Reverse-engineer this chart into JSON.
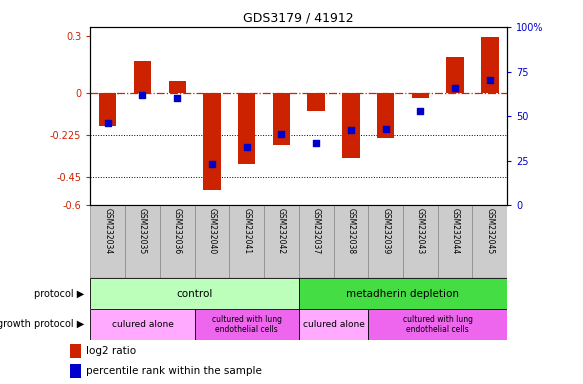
{
  "title": "GDS3179 / 41912",
  "samples": [
    "GSM232034",
    "GSM232035",
    "GSM232036",
    "GSM232040",
    "GSM232041",
    "GSM232042",
    "GSM232037",
    "GSM232038",
    "GSM232039",
    "GSM232043",
    "GSM232044",
    "GSM232045"
  ],
  "log2_ratio": [
    -0.18,
    0.17,
    0.06,
    -0.52,
    -0.38,
    -0.28,
    -0.095,
    -0.35,
    -0.24,
    -0.03,
    0.19,
    0.295
  ],
  "percentile": [
    46,
    62,
    60,
    23,
    33,
    40,
    35,
    42,
    43,
    53,
    66,
    70
  ],
  "ylim_left": [
    -0.6,
    0.35
  ],
  "ylim_right": [
    0,
    100
  ],
  "yticks_left": [
    -0.6,
    -0.45,
    -0.225,
    0,
    0.3
  ],
  "yticks_right": [
    0,
    25,
    50,
    75,
    100
  ],
  "hlines": [
    -0.225,
    -0.45
  ],
  "bar_color": "#cc2200",
  "dot_color": "#0000cc",
  "dash_color": "#cc2200",
  "protocol_control_color": "#bbffbb",
  "protocol_depletion_color": "#44dd44",
  "growth_alone_color": "#ffaaff",
  "growth_lung_color": "#ee66ee",
  "protocol_control_label": "control",
  "protocol_depletion_label": "metadherin depletion",
  "growth_alone_label": "culured alone",
  "growth_lung_label": "cultured with lung\nendothelial cells",
  "protocol_row_label": "protocol",
  "growth_row_label": "growth protocol",
  "legend_bar_label": "log2 ratio",
  "legend_dot_label": "percentile rank within the sample"
}
